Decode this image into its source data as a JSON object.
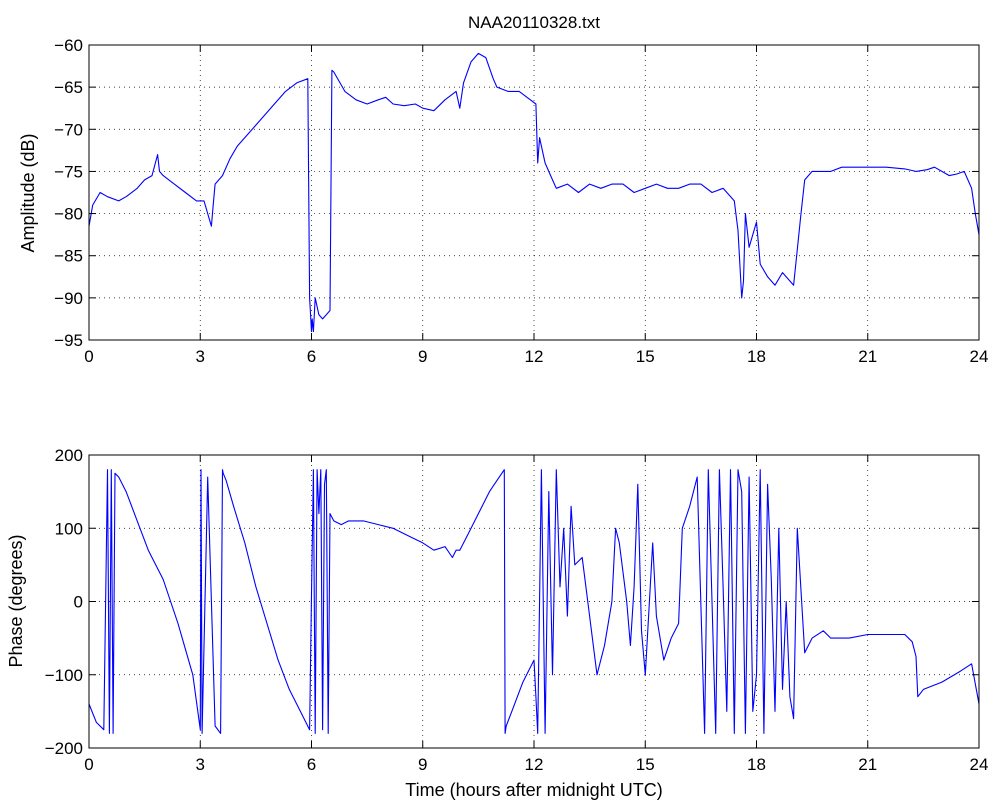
{
  "title": "NAA20110328.txt",
  "colors": {
    "series": "#0000ff",
    "axes": "#000000",
    "background": "#ffffff"
  },
  "chart_data": [
    {
      "type": "line",
      "title": "NAA20110328.txt",
      "xlabel": "",
      "ylabel": "Amplitude (dB)",
      "xlim": [
        0,
        24
      ],
      "ylim": [
        -95,
        -60
      ],
      "xticks": [
        0,
        3,
        6,
        9,
        12,
        15,
        18,
        21,
        24
      ],
      "xtick_labels": [
        "0",
        "3",
        "6",
        "9",
        "12",
        "15",
        "18",
        "21",
        "24"
      ],
      "yticks": [
        -95,
        -90,
        -85,
        -80,
        -75,
        -70,
        -65,
        -60
      ],
      "ytick_labels": [
        "−95",
        "−90",
        "−85",
        "−80",
        "−75",
        "−70",
        "−65",
        "−60"
      ],
      "grid": true,
      "series": [
        {
          "x": [
            0,
            0.1,
            0.3,
            0.5,
            0.8,
            1.0,
            1.3,
            1.5,
            1.7,
            1.85,
            1.9,
            2.0,
            2.3,
            2.6,
            2.9,
            3.1,
            3.2,
            3.3,
            3.35,
            3.4,
            3.6,
            3.8,
            4.0,
            4.3,
            4.6,
            5.0,
            5.3,
            5.6,
            5.9,
            5.95,
            6.0,
            6.02,
            6.05,
            6.1,
            6.2,
            6.3,
            6.4,
            6.5,
            6.55,
            6.6,
            6.9,
            7.2,
            7.5,
            7.8,
            8.0,
            8.2,
            8.5,
            8.8,
            9.0,
            9.3,
            9.6,
            9.9,
            10.0,
            10.1,
            10.3,
            10.5,
            10.7,
            10.9,
            11.0,
            11.3,
            11.6,
            11.9,
            12.05,
            12.1,
            12.15,
            12.2,
            12.3,
            12.5,
            12.6,
            12.9,
            13.2,
            13.5,
            13.8,
            14.1,
            14.4,
            14.7,
            15.0,
            15.3,
            15.6,
            15.9,
            16.2,
            16.5,
            16.8,
            17.1,
            17.4,
            17.5,
            17.6,
            17.65,
            17.7,
            17.8,
            18.0,
            18.1,
            18.3,
            18.5,
            18.7,
            18.9,
            19.0,
            19.2,
            19.3,
            19.5,
            19.8,
            20.0,
            20.3,
            20.5,
            21.0,
            21.5,
            22.0,
            22.3,
            22.6,
            22.8,
            23.0,
            23.2,
            23.4,
            23.6,
            23.8,
            23.9,
            24.0
          ],
          "y": [
            -81.5,
            -79,
            -77.5,
            -78,
            -78.5,
            -78,
            -77,
            -76,
            -75.5,
            -73,
            -75,
            -75.5,
            -76.5,
            -77.5,
            -78.5,
            -78.5,
            -80,
            -81.5,
            -79,
            -76.5,
            -75.5,
            -73.5,
            -72,
            -70.5,
            -69,
            -67,
            -65.5,
            -64.5,
            -64,
            -90,
            -94,
            -92.5,
            -94,
            -90,
            -92,
            -92.5,
            -92,
            -91.5,
            -63,
            -63.2,
            -65.5,
            -66.5,
            -67,
            -66.5,
            -66.2,
            -67,
            -67.2,
            -67,
            -67.5,
            -67.8,
            -66.5,
            -65.5,
            -67.5,
            -64.5,
            -62,
            -61,
            -61.5,
            -64,
            -65,
            -65.5,
            -65.5,
            -66.5,
            -67,
            -74,
            -71,
            -72,
            -74,
            -76,
            -77,
            -76.5,
            -77.5,
            -76.5,
            -77,
            -76.5,
            -76.5,
            -77.5,
            -77,
            -76.5,
            -77,
            -77,
            -76.5,
            -76.5,
            -77.5,
            -77,
            -78.5,
            -82,
            -90,
            -88,
            -80,
            -84,
            -81,
            -86,
            -87.5,
            -88.5,
            -87,
            -88,
            -88.5,
            -80,
            -76,
            -75,
            -75,
            -75,
            -74.5,
            -74.5,
            -74.5,
            -74.5,
            -74.7,
            -75,
            -74.8,
            -74.5,
            -75,
            -75.5,
            -75.3,
            -75,
            -77,
            -80,
            -82.5
          ]
        }
      ]
    },
    {
      "type": "line",
      "title": "",
      "xlabel": "Time (hours after midnight UTC)",
      "ylabel": "Phase (degrees)",
      "xlim": [
        0,
        24
      ],
      "ylim": [
        -200,
        200
      ],
      "xticks": [
        0,
        3,
        6,
        9,
        12,
        15,
        18,
        21,
        24
      ],
      "xtick_labels": [
        "0",
        "3",
        "6",
        "9",
        "12",
        "15",
        "18",
        "21",
        "24"
      ],
      "yticks": [
        -200,
        -100,
        0,
        100,
        200
      ],
      "ytick_labels": [
        "−200",
        "−100",
        "0",
        "100",
        "200"
      ],
      "grid": true,
      "series": [
        {
          "x": [
            0,
            0.2,
            0.4,
            0.5,
            0.55,
            0.6,
            0.65,
            0.7,
            0.8,
            1.0,
            1.3,
            1.6,
            2.0,
            2.4,
            2.8,
            3.0,
            3.02,
            3.05,
            3.2,
            3.4,
            3.55,
            3.6,
            3.62,
            3.7,
            3.9,
            4.2,
            4.5,
            4.8,
            5.1,
            5.4,
            5.7,
            5.95,
            6.0,
            6.05,
            6.1,
            6.15,
            6.2,
            6.25,
            6.3,
            6.35,
            6.4,
            6.45,
            6.5,
            6.6,
            6.8,
            7.0,
            7.4,
            7.8,
            8.2,
            8.6,
            9.0,
            9.3,
            9.6,
            9.8,
            9.9,
            10.0,
            10.2,
            10.5,
            10.8,
            11.0,
            11.2,
            11.22,
            11.25,
            11.4,
            11.7,
            12.0,
            12.05,
            12.1,
            12.2,
            12.3,
            12.4,
            12.5,
            12.6,
            12.7,
            12.8,
            12.9,
            13.0,
            13.1,
            13.3,
            13.5,
            13.7,
            13.9,
            14.1,
            14.2,
            14.3,
            14.4,
            14.5,
            14.6,
            14.7,
            14.8,
            14.9,
            15.0,
            15.1,
            15.2,
            15.3,
            15.5,
            15.7,
            15.9,
            16.0,
            16.2,
            16.4,
            16.6,
            16.7,
            16.8,
            16.9,
            17.0,
            17.1,
            17.2,
            17.3,
            17.4,
            17.5,
            17.6,
            17.7,
            17.8,
            17.9,
            18.0,
            18.1,
            18.2,
            18.3,
            18.4,
            18.5,
            18.6,
            18.7,
            18.8,
            18.9,
            19.0,
            19.1,
            19.3,
            19.5,
            19.8,
            20.0,
            20.5,
            21.0,
            21.5,
            22.0,
            22.2,
            22.3,
            22.35,
            22.5,
            23.0,
            23.5,
            23.8,
            24.0
          ],
          "y": [
            -140,
            -165,
            -175,
            180,
            -180,
            180,
            -180,
            175,
            170,
            150,
            110,
            70,
            30,
            -30,
            -100,
            -175,
            180,
            -180,
            170,
            -170,
            -180,
            180,
            175,
            165,
            130,
            80,
            20,
            -30,
            -80,
            -120,
            -150,
            -175,
            10,
            180,
            -180,
            180,
            120,
            180,
            -175,
            160,
            180,
            -180,
            120,
            110,
            105,
            110,
            110,
            105,
            100,
            90,
            80,
            70,
            75,
            60,
            70,
            70,
            90,
            120,
            150,
            165,
            180,
            -180,
            -170,
            -150,
            -110,
            -80,
            -130,
            -180,
            180,
            -180,
            150,
            -100,
            180,
            20,
            100,
            -20,
            130,
            50,
            60,
            -20,
            -100,
            -60,
            0,
            100,
            80,
            40,
            0,
            -60,
            20,
            160,
            -40,
            -100,
            -10,
            80,
            -20,
            -80,
            -50,
            -30,
            100,
            130,
            170,
            -180,
            180,
            0,
            -180,
            180,
            20,
            -150,
            180,
            -180,
            180,
            150,
            -180,
            170,
            -150,
            -100,
            180,
            -180,
            160,
            30,
            -150,
            100,
            -120,
            0,
            -130,
            -160,
            100,
            -70,
            -50,
            -40,
            -50,
            -50,
            -45,
            -45,
            -45,
            -55,
            -75,
            -130,
            -120,
            -110,
            -95,
            -85,
            -140
          ]
        }
      ]
    }
  ]
}
